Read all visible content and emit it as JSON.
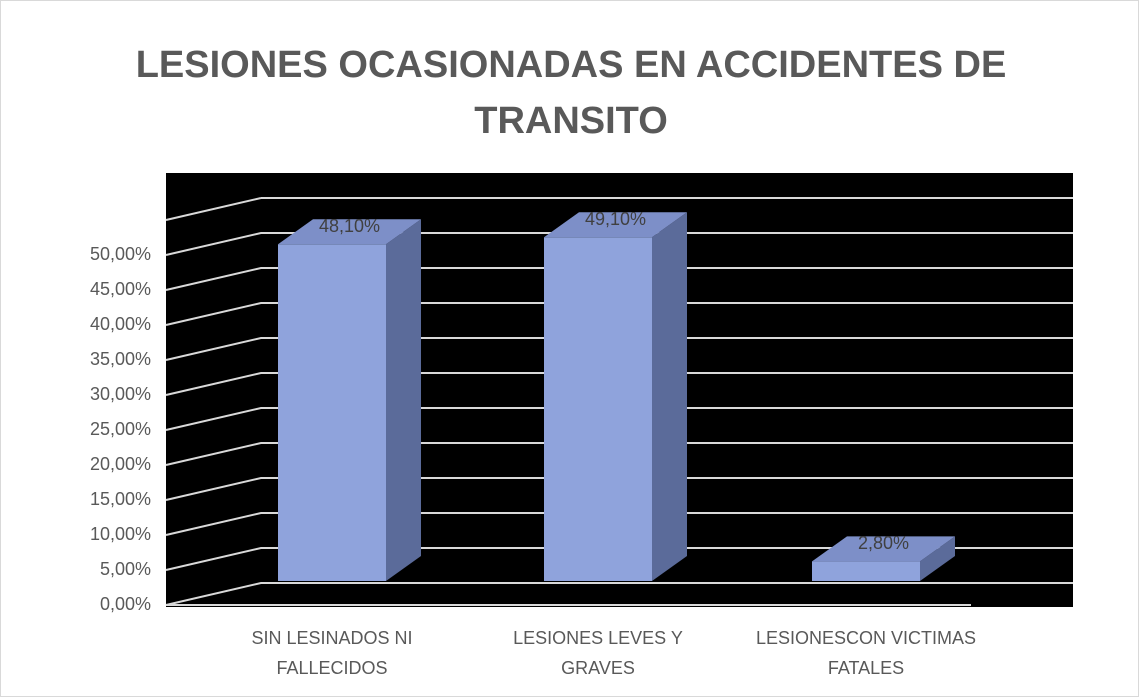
{
  "chart_data": {
    "type": "bar3d",
    "title": "LESIONES OCASIONADAS EN ACCIDENTES DE TRANSITO",
    "categories": [
      "SIN LESINADOS NI FALLECIDOS",
      "LESIONES LEVES Y GRAVES",
      "LESIONESCON VICTIMAS FATALES"
    ],
    "values": [
      48.1,
      49.1,
      2.8
    ],
    "value_labels": [
      "48,10%",
      "49,10%",
      "2,80%"
    ],
    "color": "#8fa3dc",
    "ylim": [
      0,
      55
    ],
    "yticks": [
      {
        "value": 0,
        "label": "0,00%"
      },
      {
        "value": 5,
        "label": "5,00%"
      },
      {
        "value": 10,
        "label": "10,00%"
      },
      {
        "value": 15,
        "label": "15,00%"
      },
      {
        "value": 20,
        "label": "20,00%"
      },
      {
        "value": 25,
        "label": "25,00%"
      },
      {
        "value": 30,
        "label": "30,00%"
      },
      {
        "value": 35,
        "label": "35,00%"
      },
      {
        "value": 40,
        "label": "40,00%"
      },
      {
        "value": 45,
        "label": "45,00%"
      },
      {
        "value": 50,
        "label": "50,00%"
      }
    ],
    "grid": true
  }
}
